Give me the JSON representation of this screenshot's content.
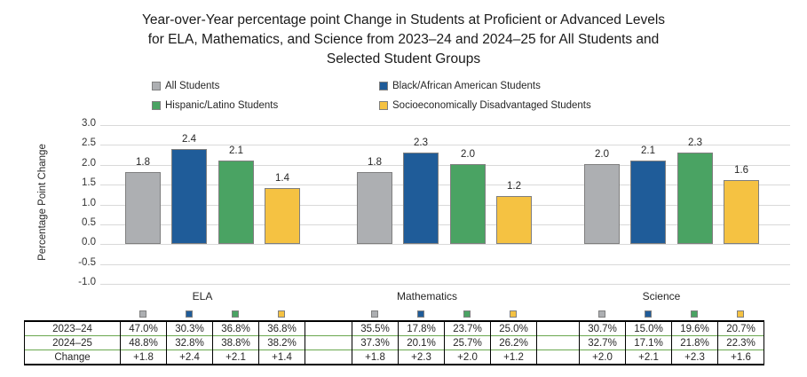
{
  "title": {
    "lines": [
      "Year-over-Year percentage point Change in Students at Proficient or Advanced Levels",
      "for ELA, Mathematics, and Science from 2023–24 and 2024–25 for All Students and",
      "Selected Student Groups"
    ]
  },
  "legend": {
    "items": [
      {
        "label": "All Students",
        "color": "#ADAFB2"
      },
      {
        "label": "Black/African American Students",
        "color": "#1F5C99"
      },
      {
        "label": "Hispanic/Latino Students",
        "color": "#4AA363"
      },
      {
        "label": "Socioeconomically Disadvantaged Students",
        "color": "#F5C242"
      }
    ]
  },
  "chart_data": {
    "type": "bar",
    "title": "Year-over-Year percentage point Change in Students at Proficient or Advanced Levels for ELA, Mathematics, and Science from 2023–24 and 2024–25 for All Students and Selected Student Groups",
    "xlabel": "",
    "ylabel": "Percentage Point Change",
    "ylim": [
      -1.0,
      3.0
    ],
    "ytick_step": 0.5,
    "yticks": [
      "3.0",
      "2.5",
      "2.0",
      "1.5",
      "1.0",
      "0.5",
      "0.0",
      "-0.5",
      "-1.0"
    ],
    "grid": true,
    "legend_position": "top",
    "bar_labels": true,
    "categories": [
      "ELA",
      "Mathematics",
      "Science"
    ],
    "series": [
      {
        "name": "All Students",
        "color": "#ADAFB2",
        "values": [
          1.8,
          1.8,
          2.0
        ]
      },
      {
        "name": "Black/African American Students",
        "color": "#1F5C99",
        "values": [
          2.4,
          2.3,
          2.1
        ]
      },
      {
        "name": "Hispanic/Latino Students",
        "color": "#4AA363",
        "values": [
          2.1,
          2.0,
          2.3
        ]
      },
      {
        "name": "Socioeconomically Disadvantaged Students",
        "color": "#F5C242",
        "values": [
          1.4,
          1.2,
          1.6
        ]
      }
    ]
  },
  "table": {
    "row_labels": [
      "2023–24",
      "2024–25",
      "Change"
    ],
    "groups": [
      {
        "category": "ELA",
        "rows": [
          [
            "47.0%",
            "30.3%",
            "36.8%",
            "36.8%"
          ],
          [
            "48.8%",
            "32.8%",
            "38.8%",
            "38.2%"
          ],
          [
            "+1.8",
            "+2.4",
            "+2.1",
            "+1.4"
          ]
        ]
      },
      {
        "category": "Mathematics",
        "rows": [
          [
            "35.5%",
            "17.8%",
            "23.7%",
            "25.0%"
          ],
          [
            "37.3%",
            "20.1%",
            "25.7%",
            "26.2%"
          ],
          [
            "+1.8",
            "+2.3",
            "+2.0",
            "+1.2"
          ]
        ]
      },
      {
        "category": "Science",
        "rows": [
          [
            "30.7%",
            "15.0%",
            "19.6%",
            "20.7%"
          ],
          [
            "32.7%",
            "17.1%",
            "21.8%",
            "22.3%"
          ],
          [
            "+2.0",
            "+2.1",
            "+2.3",
            "+1.6"
          ]
        ]
      }
    ]
  },
  "colors": {
    "gridline": "#D9D9D9",
    "bar_border": "#7F7F7F",
    "table_outer_border": "#000000",
    "table_inner_horizontal": "#6AA84F",
    "table_inner_vertical": "#000000",
    "text": "#262626"
  }
}
